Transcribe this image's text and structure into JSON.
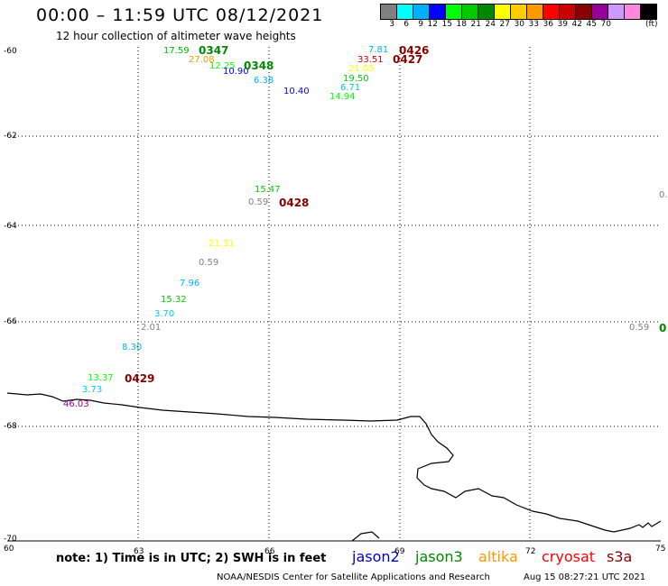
{
  "header": {
    "title": "00:00 – 11:59 UTC 08/12/2021",
    "subtitle": "12 hour collection of altimeter wave heights"
  },
  "legend": {
    "unit": "(ft)",
    "scale": [
      {
        "label": "3",
        "color": "#808080"
      },
      {
        "label": "6",
        "color": "#00ffff"
      },
      {
        "label": "9",
        "color": "#00b0ff"
      },
      {
        "label": "12",
        "color": "#0000ff"
      },
      {
        "label": "15",
        "color": "#00ff00"
      },
      {
        "label": "18",
        "color": "#00cc00"
      },
      {
        "label": "21",
        "color": "#008800"
      },
      {
        "label": "24",
        "color": "#ffff00"
      },
      {
        "label": "27",
        "color": "#ffcc00"
      },
      {
        "label": "30",
        "color": "#ff9900"
      },
      {
        "label": "33",
        "color": "#ff0000"
      },
      {
        "label": "36",
        "color": "#cc0000"
      },
      {
        "label": "39",
        "color": "#880000"
      },
      {
        "label": "42",
        "color": "#990099"
      },
      {
        "label": "45",
        "color": "#cc99ff"
      },
      {
        "label": "70",
        "color": "#ff88dd"
      },
      {
        "label": "",
        "color": "#000000"
      }
    ]
  },
  "map": {
    "lat_ticks": [
      "-60",
      "-62",
      "-64",
      "-66",
      "-68",
      "-70"
    ],
    "lon_ticks": [
      "60",
      "63",
      "66",
      "69",
      "72",
      "75"
    ],
    "wave_values": [
      {
        "text": "17.59",
        "color": "#00bb00"
      },
      {
        "text": "27.08",
        "color": "#ff9900"
      },
      {
        "text": "12.25",
        "color": "#00ff00"
      },
      {
        "text": "10.90",
        "color": "#0000ff"
      },
      {
        "text": "6.38",
        "color": "#00b0ff"
      },
      {
        "text": "10.40",
        "color": "#0000ff"
      },
      {
        "text": "7.81",
        "color": "#00b0ff"
      },
      {
        "text": "33.51",
        "color": "#cc0000"
      },
      {
        "text": "21.05",
        "color": "#ffff00"
      },
      {
        "text": "19.50",
        "color": "#00cc00"
      },
      {
        "text": "6.71",
        "color": "#00cccc"
      },
      {
        "text": "14.94",
        "color": "#00ff00"
      },
      {
        "text": "15.47",
        "color": "#00cc00"
      },
      {
        "text": "0.59",
        "color": "#808080"
      },
      {
        "text": "21.31",
        "color": "#ffff00"
      },
      {
        "text": "0.59",
        "color": "#808080"
      },
      {
        "text": "7.96",
        "color": "#00b0ff"
      },
      {
        "text": "15.32",
        "color": "#00cc00"
      },
      {
        "text": "3.70",
        "color": "#00ccff"
      },
      {
        "text": "2.01",
        "color": "#808080"
      },
      {
        "text": "8.30",
        "color": "#00b0ff"
      },
      {
        "text": "13.37",
        "color": "#00ff00"
      },
      {
        "text": "3.73",
        "color": "#00ccff"
      },
      {
        "text": "46.03",
        "color": "#990099"
      },
      {
        "text": "0.59",
        "color": "#808080"
      },
      {
        "text": "0.",
        "color": "#808080"
      }
    ],
    "pass_times": [
      {
        "text": "0347",
        "color": "#008800"
      },
      {
        "text": "0348",
        "color": "#008800"
      },
      {
        "text": "0426",
        "color": "#880000"
      },
      {
        "text": "0427",
        "color": "#880000"
      },
      {
        "text": "0428",
        "color": "#880000"
      },
      {
        "text": "0429",
        "color": "#880000"
      },
      {
        "text": "0",
        "color": "#008800"
      }
    ]
  },
  "footer": {
    "note": "note:  1) Time is in UTC; 2) SWH is in feet",
    "satellites": [
      {
        "name": "jason2",
        "color": "#0000cc"
      },
      {
        "name": "jason3",
        "color": "#008800"
      },
      {
        "name": "altika",
        "color": "#ff9900"
      },
      {
        "name": "cryosat",
        "color": "#ff0000"
      },
      {
        "name": "s3a",
        "color": "#880000"
      }
    ],
    "credit": "NOAA/NESDIS Center for Satellite Applications and Research",
    "timestamp": "Aug 15 08:27:21 UTC 2021"
  }
}
